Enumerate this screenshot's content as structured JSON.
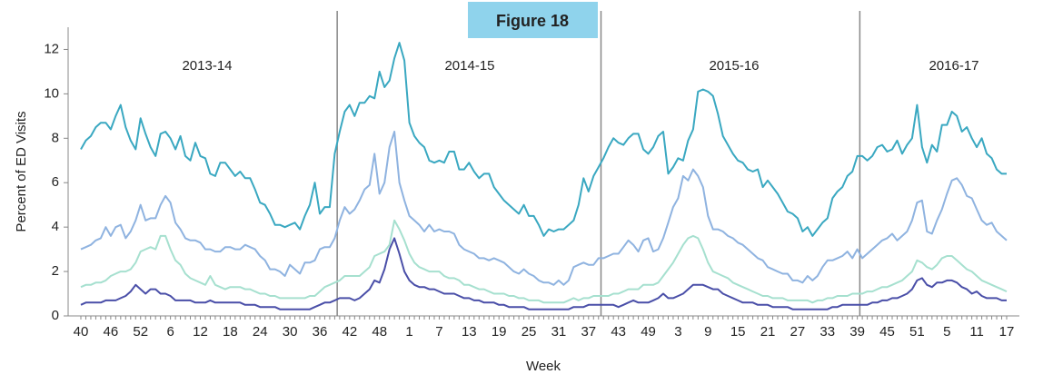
{
  "chart_data": {
    "type": "line",
    "title": "Figure 18",
    "y_label": "Percent of ED Visits",
    "x_label": "Week",
    "annotations": [
      "2013-14",
      "2014-15",
      "2015-16",
      "2016-17"
    ],
    "categories": [
      "40",
      null,
      null,
      null,
      null,
      null,
      "46",
      null,
      null,
      null,
      null,
      null,
      "52",
      null,
      null,
      null,
      null,
      null,
      "6",
      null,
      null,
      null,
      null,
      null,
      "12",
      null,
      null,
      null,
      null,
      null,
      "18",
      null,
      null,
      null,
      null,
      null,
      "24",
      null,
      null,
      null,
      null,
      null,
      "30",
      null,
      null,
      null,
      null,
      null,
      "36",
      null,
      null,
      null,
      null,
      null,
      "42",
      null,
      null,
      null,
      null,
      null,
      "48",
      null,
      null,
      null,
      null,
      null,
      "1",
      null,
      null,
      null,
      null,
      null,
      "7",
      null,
      null,
      null,
      null,
      null,
      "13",
      null,
      null,
      null,
      null,
      null,
      "19",
      null,
      null,
      null,
      null,
      null,
      "25",
      null,
      null,
      null,
      null,
      null,
      "31",
      null,
      null,
      null,
      null,
      null,
      "37",
      null,
      null,
      null,
      null,
      null,
      "43",
      null,
      null,
      null,
      null,
      null,
      "49",
      null,
      null,
      null,
      null,
      null,
      "3",
      null,
      null,
      null,
      null,
      null,
      "9",
      null,
      null,
      null,
      null,
      null,
      "15",
      null,
      null,
      null,
      null,
      null,
      "21",
      null,
      null,
      null,
      null,
      null,
      "27",
      null,
      null,
      null,
      null,
      null,
      "33",
      null,
      null,
      null,
      null,
      null,
      "39",
      null,
      null,
      null,
      null,
      null,
      "45",
      null,
      null,
      null,
      null,
      null,
      "51",
      null,
      null,
      null,
      null,
      null,
      "5",
      null,
      null,
      null,
      null,
      null,
      "11",
      null,
      null,
      null,
      null,
      null,
      "17"
    ],
    "series": [
      {
        "color": "#3aa8c1",
        "values": [
          7.5,
          7.9,
          8.1,
          8.5,
          8.7,
          8.7,
          8.4,
          9.0,
          9.5,
          8.5,
          7.9,
          7.5,
          8.9,
          8.2,
          7.6,
          7.2,
          8.2,
          8.3,
          8.0,
          7.5,
          8.1,
          7.2,
          7.0,
          7.8,
          7.2,
          7.1,
          6.4,
          6.3,
          6.9,
          6.9,
          6.6,
          6.3,
          6.5,
          6.2,
          6.2,
          5.7,
          5.1,
          5.0,
          4.6,
          4.1,
          4.1,
          4.0,
          4.1,
          4.2,
          3.9,
          4.5,
          5.0,
          6.0,
          4.6,
          4.9,
          4.9,
          7.3,
          8.3,
          9.2,
          9.5,
          9.0,
          9.6,
          9.6,
          9.9,
          9.8,
          11.0,
          10.3,
          10.6,
          11.6,
          12.3,
          11.5,
          8.7,
          8.1,
          7.8,
          7.6,
          7.0,
          6.9,
          7.0,
          6.9,
          7.4,
          7.4,
          6.6,
          6.6,
          6.9,
          6.5,
          6.2,
          6.4,
          6.4,
          5.8,
          5.5,
          5.2,
          5.0,
          4.8,
          4.6,
          5.0,
          4.5,
          4.5,
          4.1,
          3.6,
          3.9,
          3.8,
          3.9,
          3.9,
          4.1,
          4.3,
          5.0,
          6.2,
          5.6,
          6.3,
          6.7,
          7.1,
          7.6,
          8.0,
          7.8,
          7.7,
          8.0,
          8.2,
          8.2,
          7.5,
          7.3,
          7.6,
          8.1,
          8.3,
          6.4,
          6.7,
          7.1,
          7.0,
          7.9,
          8.4,
          10.1,
          10.2,
          10.1,
          9.9,
          9.1,
          8.1,
          7.7,
          7.3,
          7.0,
          6.9,
          6.6,
          6.5,
          6.6,
          5.8,
          6.1,
          5.8,
          5.5,
          5.1,
          4.7,
          4.6,
          4.4,
          3.8,
          4.0,
          3.6,
          3.9,
          4.2,
          4.4,
          5.3,
          5.6,
          5.8,
          6.3,
          6.5,
          7.2,
          7.2,
          7.0,
          7.2,
          7.6,
          7.7,
          7.4,
          7.5,
          7.9,
          7.3,
          7.7,
          8.0,
          9.5,
          7.6,
          6.9,
          7.7,
          7.4,
          8.6,
          8.6,
          9.2,
          9.0,
          8.3,
          8.5,
          8.0,
          7.6,
          8.0,
          7.3,
          7.1,
          6.6,
          6.4,
          6.4
        ]
      },
      {
        "color": "#8fb3e0",
        "values": [
          3.0,
          3.1,
          3.2,
          3.4,
          3.5,
          4.0,
          3.6,
          4.0,
          4.1,
          3.5,
          3.8,
          4.3,
          5.0,
          4.3,
          4.4,
          4.4,
          5.0,
          5.4,
          5.1,
          4.2,
          3.9,
          3.5,
          3.4,
          3.4,
          3.3,
          3.0,
          3.0,
          2.9,
          2.9,
          3.1,
          3.1,
          3.0,
          3.0,
          3.2,
          3.1,
          3.0,
          2.7,
          2.5,
          2.1,
          2.1,
          2.0,
          1.8,
          2.3,
          2.1,
          1.9,
          2.4,
          2.4,
          2.5,
          3.0,
          3.1,
          3.1,
          3.5,
          4.3,
          4.9,
          4.6,
          4.8,
          5.2,
          5.7,
          5.9,
          7.3,
          5.5,
          6.0,
          7.6,
          8.3,
          6.0,
          5.2,
          4.5,
          4.3,
          4.1,
          3.8,
          4.1,
          3.8,
          3.9,
          3.8,
          3.8,
          3.7,
          3.2,
          3.0,
          2.9,
          2.8,
          2.6,
          2.6,
          2.5,
          2.6,
          2.5,
          2.4,
          2.2,
          2.0,
          1.9,
          2.1,
          1.9,
          1.8,
          1.6,
          1.5,
          1.5,
          1.4,
          1.6,
          1.4,
          1.6,
          2.2,
          2.3,
          2.4,
          2.3,
          2.3,
          2.6,
          2.6,
          2.7,
          2.8,
          2.8,
          3.1,
          3.4,
          3.2,
          2.9,
          3.4,
          3.5,
          2.9,
          3.0,
          3.5,
          4.2,
          4.9,
          5.3,
          6.3,
          6.1,
          6.6,
          6.3,
          5.8,
          4.5,
          3.9,
          3.9,
          3.8,
          3.6,
          3.5,
          3.3,
          3.2,
          3.0,
          2.8,
          2.6,
          2.5,
          2.2,
          2.1,
          2.0,
          1.9,
          1.9,
          1.6,
          1.6,
          1.5,
          1.8,
          1.6,
          1.8,
          2.2,
          2.5,
          2.5,
          2.6,
          2.7,
          2.9,
          2.6,
          3.0,
          2.6,
          2.8,
          3.0,
          3.2,
          3.4,
          3.5,
          3.7,
          3.4,
          3.6,
          3.8,
          4.3,
          5.1,
          5.2,
          3.8,
          3.7,
          4.3,
          4.8,
          5.5,
          6.1,
          6.2,
          5.9,
          5.4,
          5.3,
          4.8,
          4.3,
          4.1,
          4.2,
          3.8,
          3.6,
          3.4
        ]
      },
      {
        "color": "#a6e0cf",
        "values": [
          1.3,
          1.4,
          1.4,
          1.5,
          1.5,
          1.6,
          1.8,
          1.9,
          2.0,
          2.0,
          2.1,
          2.4,
          2.9,
          3.0,
          3.1,
          3.0,
          3.6,
          3.6,
          3.0,
          2.5,
          2.3,
          1.9,
          1.7,
          1.6,
          1.5,
          1.4,
          1.8,
          1.4,
          1.3,
          1.2,
          1.3,
          1.3,
          1.3,
          1.2,
          1.2,
          1.1,
          1.0,
          1.0,
          0.9,
          0.9,
          0.8,
          0.8,
          0.8,
          0.8,
          0.8,
          0.8,
          0.9,
          0.9,
          1.1,
          1.3,
          1.4,
          1.5,
          1.6,
          1.8,
          1.8,
          1.8,
          1.8,
          2.0,
          2.2,
          2.7,
          2.8,
          2.9,
          3.2,
          4.3,
          3.9,
          3.4,
          2.8,
          2.4,
          2.2,
          2.1,
          2.0,
          2.0,
          2.0,
          1.8,
          1.7,
          1.7,
          1.6,
          1.4,
          1.4,
          1.3,
          1.2,
          1.2,
          1.1,
          1.0,
          1.0,
          1.0,
          0.9,
          0.9,
          0.8,
          0.8,
          0.7,
          0.7,
          0.7,
          0.6,
          0.6,
          0.6,
          0.6,
          0.6,
          0.7,
          0.8,
          0.7,
          0.8,
          0.8,
          0.9,
          0.9,
          0.9,
          0.9,
          1.0,
          1.0,
          1.1,
          1.2,
          1.2,
          1.2,
          1.4,
          1.4,
          1.4,
          1.5,
          1.8,
          2.1,
          2.4,
          2.8,
          3.2,
          3.5,
          3.6,
          3.5,
          3.0,
          2.4,
          2.0,
          1.9,
          1.8,
          1.7,
          1.5,
          1.4,
          1.3,
          1.2,
          1.1,
          1.0,
          0.9,
          0.9,
          0.8,
          0.8,
          0.8,
          0.7,
          0.7,
          0.7,
          0.7,
          0.7,
          0.6,
          0.7,
          0.7,
          0.8,
          0.8,
          0.9,
          0.9,
          0.9,
          1.0,
          1.0,
          1.0,
          1.1,
          1.1,
          1.2,
          1.3,
          1.3,
          1.4,
          1.5,
          1.6,
          1.8,
          2.0,
          2.5,
          2.4,
          2.2,
          2.1,
          2.3,
          2.6,
          2.7,
          2.7,
          2.5,
          2.3,
          2.1,
          2.0,
          1.8,
          1.6,
          1.5,
          1.4,
          1.3,
          1.2,
          1.1
        ]
      },
      {
        "color": "#4a4fa8",
        "values": [
          0.5,
          0.6,
          0.6,
          0.6,
          0.6,
          0.7,
          0.7,
          0.7,
          0.8,
          0.9,
          1.1,
          1.4,
          1.2,
          1.0,
          1.2,
          1.2,
          1.0,
          1.0,
          0.9,
          0.7,
          0.7,
          0.7,
          0.7,
          0.6,
          0.6,
          0.6,
          0.7,
          0.6,
          0.6,
          0.6,
          0.6,
          0.6,
          0.6,
          0.5,
          0.5,
          0.5,
          0.4,
          0.4,
          0.4,
          0.4,
          0.3,
          0.3,
          0.3,
          0.3,
          0.3,
          0.3,
          0.3,
          0.4,
          0.5,
          0.6,
          0.6,
          0.7,
          0.8,
          0.8,
          0.8,
          0.7,
          0.8,
          1.0,
          1.2,
          1.6,
          1.5,
          2.1,
          3.0,
          3.5,
          2.8,
          2.0,
          1.6,
          1.4,
          1.3,
          1.3,
          1.2,
          1.2,
          1.1,
          1.0,
          1.0,
          1.0,
          0.9,
          0.8,
          0.8,
          0.7,
          0.7,
          0.6,
          0.6,
          0.6,
          0.5,
          0.5,
          0.4,
          0.4,
          0.4,
          0.4,
          0.3,
          0.3,
          0.3,
          0.3,
          0.3,
          0.3,
          0.3,
          0.3,
          0.3,
          0.4,
          0.4,
          0.4,
          0.5,
          0.5,
          0.5,
          0.5,
          0.5,
          0.5,
          0.4,
          0.5,
          0.6,
          0.7,
          0.6,
          0.6,
          0.6,
          0.7,
          0.8,
          1.0,
          0.8,
          0.8,
          0.9,
          1.0,
          1.2,
          1.4,
          1.4,
          1.4,
          1.3,
          1.2,
          1.2,
          1.0,
          0.9,
          0.8,
          0.7,
          0.6,
          0.6,
          0.6,
          0.5,
          0.5,
          0.5,
          0.4,
          0.4,
          0.4,
          0.4,
          0.3,
          0.3,
          0.3,
          0.3,
          0.3,
          0.3,
          0.3,
          0.3,
          0.4,
          0.4,
          0.5,
          0.5,
          0.5,
          0.5,
          0.5,
          0.5,
          0.6,
          0.6,
          0.7,
          0.7,
          0.8,
          0.8,
          0.9,
          1.0,
          1.2,
          1.6,
          1.7,
          1.4,
          1.3,
          1.5,
          1.5,
          1.6,
          1.6,
          1.5,
          1.3,
          1.2,
          1.0,
          1.1,
          0.9,
          0.8,
          0.8,
          0.8,
          0.7,
          0.7
        ]
      }
    ],
    "ylim": [
      0,
      13
    ],
    "yticks": [
      0,
      2,
      4,
      6,
      8,
      10,
      12
    ],
    "grid": false
  }
}
